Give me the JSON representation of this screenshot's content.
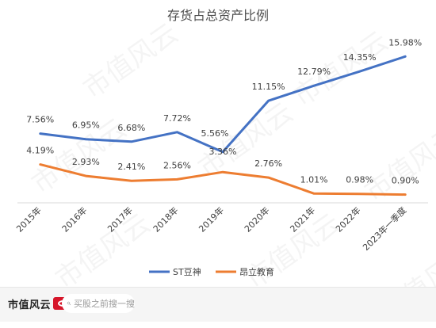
{
  "chart_data": {
    "type": "line",
    "title": "存货占总资产比例",
    "categories": [
      "2015年",
      "2016年",
      "2017年",
      "2018年",
      "2019年",
      "2020年",
      "2021年",
      "2022年",
      "2023年一季度"
    ],
    "series": [
      {
        "name": "ST豆神",
        "color": "#4472C4",
        "values": [
          7.56,
          6.95,
          6.68,
          7.72,
          5.56,
          11.15,
          12.79,
          14.35,
          15.98
        ],
        "labels": [
          "7.56%",
          "6.95%",
          "6.68%",
          "7.72%",
          "5.56%",
          "11.15%",
          "12.79%",
          "14.35%",
          "15.98%"
        ]
      },
      {
        "name": "昂立教育",
        "color": "#ED7D31",
        "values": [
          4.19,
          2.93,
          2.41,
          2.56,
          3.36,
          2.76,
          1.01,
          0.98,
          0.9
        ],
        "labels": [
          "4.19%",
          "2.93%",
          "2.41%",
          "2.56%",
          "3.36%",
          "2.76%",
          "1.01%",
          "0.98%",
          "0.90%"
        ]
      }
    ],
    "ylim": [
      0,
      18
    ],
    "grid": false,
    "legend_position": "bottom",
    "axis_color": "#d9d9d9",
    "text_color": "#404040"
  },
  "watermark": {
    "text": "市值风云"
  },
  "footer": {
    "brand": "市值风云",
    "search_placeholder": "买股之前搜一搜",
    "search_icon": "magnifier-icon"
  }
}
